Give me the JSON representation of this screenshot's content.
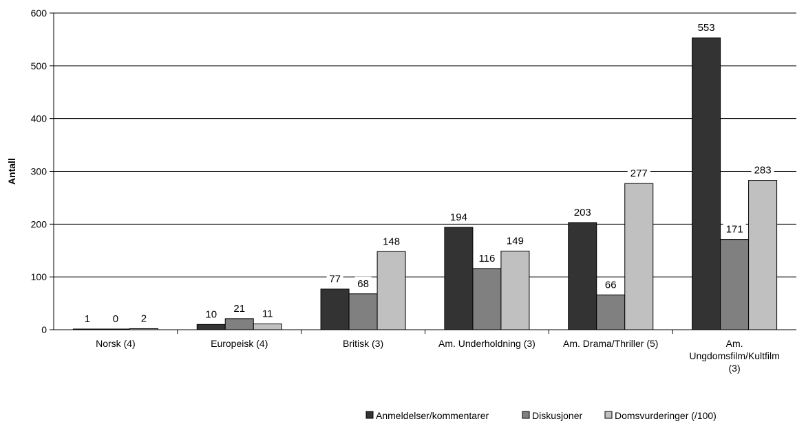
{
  "chart_data": {
    "type": "bar",
    "title": "",
    "xlabel": "",
    "ylabel": "Antall",
    "ylim": [
      0,
      600
    ],
    "yticks": [
      0,
      100,
      200,
      300,
      400,
      500,
      600
    ],
    "grid": true,
    "legend_position": "bottom-right",
    "categories": [
      [
        "Norsk (4)"
      ],
      [
        "Europeisk (4)"
      ],
      [
        "Britisk (3)"
      ],
      [
        "Am. Underholdning (3)"
      ],
      [
        "Am. Drama/Thriller (5)"
      ],
      [
        "Am.",
        "Ungdomsfilm/Kultfilm",
        "(3)"
      ]
    ],
    "series": [
      {
        "name": "Anmeldelser/kommentarer",
        "color": "#333333",
        "values": [
          1,
          10,
          77,
          194,
          203,
          553
        ]
      },
      {
        "name": "Diskusjoner",
        "color": "#808080",
        "values": [
          0,
          21,
          68,
          116,
          66,
          171
        ]
      },
      {
        "name": "Domsvurderinger (/100)",
        "color": "#c0c0c0",
        "values": [
          2,
          11,
          148,
          149,
          277,
          283
        ]
      }
    ]
  }
}
